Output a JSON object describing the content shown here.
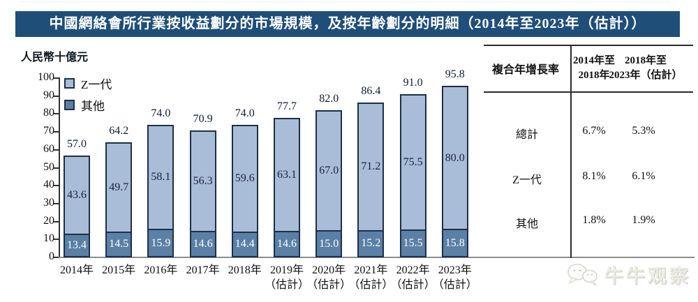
{
  "title": "中國網絡會所行業按收益劃分的市場規模，及按年齡劃分的明細（2014年至2023年（估計））",
  "unit_label": "人民幣十億元",
  "chart_data": {
    "type": "bar",
    "stacked": true,
    "title": "中國網絡會所行業按收益劃分的市場規模，及按年齡劃分的明細（2014年至2023年（估計））",
    "ylabel": "人民幣十億元",
    "ylim": [
      0,
      100
    ],
    "yticks": [
      0,
      10,
      20,
      30,
      40,
      50,
      60,
      70,
      80,
      90,
      100
    ],
    "grid": false,
    "legend_position": "top-left",
    "categories": [
      "2014年",
      "2015年",
      "2016年",
      "2017年",
      "2018年",
      "2019年",
      "2020年",
      "2021年",
      "2022年",
      "2023年"
    ],
    "estimate_suffix": "（估計）",
    "estimate_from_index": 5,
    "series": [
      {
        "name": "Z一代",
        "color": "#a9bdd9",
        "values": [
          43.6,
          49.7,
          58.1,
          56.3,
          59.6,
          63.1,
          67.0,
          71.2,
          75.5,
          80.0
        ]
      },
      {
        "name": "其他",
        "color": "#5b80a6",
        "values": [
          13.4,
          14.5,
          15.9,
          14.6,
          14.4,
          14.6,
          15.0,
          15.2,
          15.5,
          15.8
        ]
      }
    ],
    "totals": [
      57.0,
      64.2,
      74.0,
      70.9,
      74.0,
      77.7,
      82.0,
      86.4,
      91.0,
      95.8
    ]
  },
  "table": {
    "header_col": "複合年增長率",
    "col_headers": [
      [
        "2014年至",
        "2018年"
      ],
      [
        "2018年至",
        "2023年（估計）"
      ]
    ],
    "rows": [
      {
        "label": "總計",
        "values": [
          "6.7%",
          "5.3%"
        ]
      },
      {
        "label": "Z一代",
        "values": [
          "8.1%",
          "6.1%"
        ]
      },
      {
        "label": "其他",
        "values": [
          "1.8%",
          "1.9%"
        ]
      }
    ]
  },
  "watermark": {
    "text": "牛牛观察",
    "icon": "wechat-chat-bubbles-icon"
  },
  "colors": {
    "title_bar": "#1f4e79",
    "genz_fill": "#a9bdd9",
    "other_fill": "#5b80a6",
    "bar_border": "#1e2f47",
    "label_dark": "#16233c",
    "axis_line": "#333333",
    "baseline": "#8c8c8c",
    "table_line": "#2b2b2b",
    "watermark_text": "#ecebe4"
  }
}
